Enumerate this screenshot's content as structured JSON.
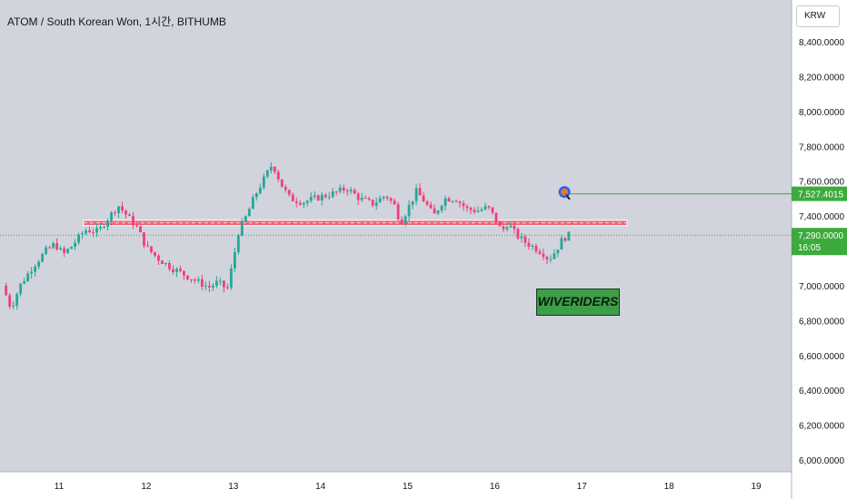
{
  "header": {
    "title": "ATOM / South Korean Won, 1시간, BITHUMB"
  },
  "currency_button": {
    "label": "KRW"
  },
  "watermark": {
    "text": "WIVERIDERS"
  },
  "colors": {
    "background": "#d1d4dc",
    "up": "#26a69a",
    "down": "#ef3f7a",
    "line": "#3cab3c",
    "zone": "#f05064",
    "marker": "#e8762c"
  },
  "chart_data": {
    "type": "candlestick",
    "xlabel": "",
    "ylabel": "",
    "x_ticks": [
      "11",
      "12",
      "13",
      "14",
      "15",
      "16",
      "17",
      "18",
      "19"
    ],
    "y_ticks": [
      "6,000.0000",
      "6,200.0000",
      "6,400.0000",
      "6,600.0000",
      "6,800.0000",
      "7,000.0000",
      "7,200.0000",
      "7,400.0000",
      "7,600.0000",
      "7,800.0000",
      "8,000.0000",
      "8,200.0000",
      "8,400.0000"
    ],
    "ylim": [
      5950,
      8530
    ],
    "xlim_days": [
      10.35,
      19.4
    ],
    "grid": false,
    "last_price": {
      "label": "7,290.0000",
      "countdown": "16:05",
      "value": 7290
    },
    "target": {
      "label": "7,527.4015",
      "value": 7527.4,
      "from_day": 16.8
    },
    "resistance_zone": {
      "low": 7345,
      "high": 7375,
      "from_day": 11.28,
      "to_day": 17.52
    },
    "price_path": [
      {
        "d": 10.35,
        "v": 7000
      },
      {
        "d": 10.45,
        "v": 6870
      },
      {
        "d": 10.55,
        "v": 7000
      },
      {
        "d": 10.7,
        "v": 7110
      },
      {
        "d": 10.85,
        "v": 7200
      },
      {
        "d": 10.95,
        "v": 7240
      },
      {
        "d": 11.05,
        "v": 7180
      },
      {
        "d": 11.15,
        "v": 7230
      },
      {
        "d": 11.3,
        "v": 7320
      },
      {
        "d": 11.45,
        "v": 7310
      },
      {
        "d": 11.55,
        "v": 7380
      },
      {
        "d": 11.68,
        "v": 7460
      },
      {
        "d": 11.8,
        "v": 7390
      },
      {
        "d": 11.9,
        "v": 7330
      },
      {
        "d": 12.0,
        "v": 7220
      },
      {
        "d": 12.15,
        "v": 7150
      },
      {
        "d": 12.3,
        "v": 7100
      },
      {
        "d": 12.45,
        "v": 7060
      },
      {
        "d": 12.6,
        "v": 7020
      },
      {
        "d": 12.72,
        "v": 6990
      },
      {
        "d": 12.82,
        "v": 7020
      },
      {
        "d": 12.93,
        "v": 6980
      },
      {
        "d": 13.0,
        "v": 7150
      },
      {
        "d": 13.06,
        "v": 7310
      },
      {
        "d": 13.15,
        "v": 7400
      },
      {
        "d": 13.25,
        "v": 7520
      },
      {
        "d": 13.35,
        "v": 7610
      },
      {
        "d": 13.45,
        "v": 7700
      },
      {
        "d": 13.55,
        "v": 7580
      },
      {
        "d": 13.65,
        "v": 7500
      },
      {
        "d": 13.8,
        "v": 7480
      },
      {
        "d": 14.0,
        "v": 7510
      },
      {
        "d": 14.15,
        "v": 7530
      },
      {
        "d": 14.3,
        "v": 7560
      },
      {
        "d": 14.45,
        "v": 7500
      },
      {
        "d": 14.6,
        "v": 7470
      },
      {
        "d": 14.75,
        "v": 7520
      },
      {
        "d": 14.85,
        "v": 7460
      },
      {
        "d": 14.92,
        "v": 7360
      },
      {
        "d": 15.0,
        "v": 7440
      },
      {
        "d": 15.1,
        "v": 7540
      },
      {
        "d": 15.2,
        "v": 7480
      },
      {
        "d": 15.3,
        "v": 7400
      },
      {
        "d": 15.42,
        "v": 7500
      },
      {
        "d": 15.55,
        "v": 7500
      },
      {
        "d": 15.68,
        "v": 7440
      },
      {
        "d": 15.8,
        "v": 7430
      },
      {
        "d": 15.92,
        "v": 7450
      },
      {
        "d": 16.0,
        "v": 7390
      },
      {
        "d": 16.08,
        "v": 7310
      },
      {
        "d": 16.15,
        "v": 7360
      },
      {
        "d": 16.25,
        "v": 7290
      },
      {
        "d": 16.35,
        "v": 7250
      },
      {
        "d": 16.45,
        "v": 7220
      },
      {
        "d": 16.55,
        "v": 7190
      },
      {
        "d": 16.62,
        "v": 7150
      },
      {
        "d": 16.7,
        "v": 7200
      },
      {
        "d": 16.78,
        "v": 7270
      },
      {
        "d": 16.85,
        "v": 7290
      }
    ]
  }
}
